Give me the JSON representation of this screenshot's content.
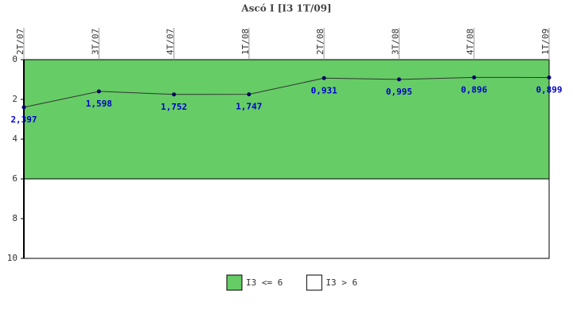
{
  "chart_data": {
    "type": "line",
    "title": "Ascó I [I3 1T/09]",
    "categories": [
      "2T/07",
      "3T/07",
      "4T/07",
      "1T/08",
      "2T/08",
      "3T/08",
      "4T/08",
      "1T/09"
    ],
    "series": [
      {
        "name": "I3",
        "color": "#333333",
        "values": [
          2.397,
          1.598,
          1.752,
          1.747,
          0.931,
          0.995,
          0.896,
          0.899
        ],
        "value_labels": [
          "2,397",
          "1,598",
          "1,752",
          "1,747",
          "0,931",
          "0,995",
          "0,896",
          "0,899"
        ]
      }
    ],
    "ylim": [
      0,
      10
    ],
    "yticks": [
      0,
      2,
      4,
      6,
      8,
      10
    ],
    "y_reversed": true,
    "bands": [
      {
        "name": "I3 <= 6",
        "color": "#66cc66",
        "from": 0,
        "to": 6
      },
      {
        "name": "I3 > 6",
        "color": "#ffffff",
        "from": 6,
        "to": 10
      }
    ]
  }
}
